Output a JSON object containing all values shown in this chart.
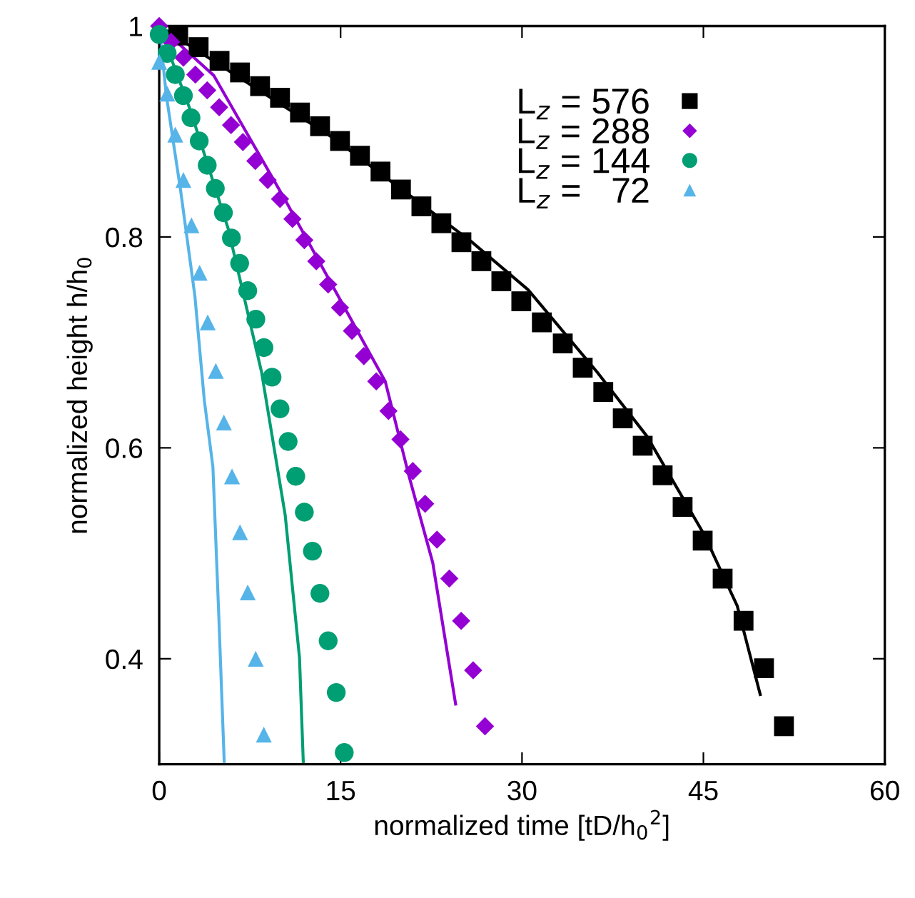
{
  "chart_data": {
    "type": "scatter",
    "xlabel": "normalized time [tD/h$_{0}$$^{2}$]",
    "ylabel": "normalized height h/h$_{0}$",
    "xlim": [
      0,
      60
    ],
    "ylim": [
      0.3,
      1
    ],
    "xticks": [
      0,
      15,
      30,
      45,
      60
    ],
    "yticks": [
      0.4,
      0.6,
      0.8,
      1
    ],
    "grid": false,
    "legend": "top right",
    "series": [
      {
        "name": "L$_{z}$ = 576",
        "marker": "square",
        "color": "#000000",
        "x": [
          1.57,
          3.26,
          4.99,
          6.68,
          8.34,
          9.99,
          11.64,
          13.3,
          14.95,
          16.6,
          18.3,
          19.99,
          21.68,
          23.33,
          24.99,
          26.64,
          28.29,
          29.94,
          31.64,
          33.37,
          35.02,
          36.72,
          38.33,
          39.98,
          41.63,
          43.28,
          44.94,
          46.59,
          48.32,
          50.01,
          51.66
        ],
        "values": [
          0.991,
          0.98,
          0.967,
          0.956,
          0.943,
          0.932,
          0.918,
          0.905,
          0.891,
          0.877,
          0.862,
          0.845,
          0.829,
          0.813,
          0.795,
          0.777,
          0.758,
          0.739,
          0.719,
          0.699,
          0.676,
          0.653,
          0.628,
          0.602,
          0.574,
          0.544,
          0.512,
          0.476,
          0.436,
          0.391,
          0.336
        ]
      },
      {
        "name": "L$_{z}$ = 288",
        "marker": "diamond",
        "color": "#9400d3",
        "x": [
          0,
          0.98,
          2.0,
          2.99,
          3.97,
          4.96,
          5.94,
          6.92,
          7.95,
          8.97,
          9.99,
          11.02,
          12.0,
          12.99,
          13.97,
          14.95,
          15.94,
          16.92,
          17.95,
          18.96,
          19.95,
          20.97,
          21.99,
          22.97,
          23.99,
          24.97,
          25.96,
          26.94
        ],
        "values": [
          1.0,
          0.985,
          0.97,
          0.954,
          0.939,
          0.923,
          0.906,
          0.89,
          0.872,
          0.854,
          0.836,
          0.817,
          0.797,
          0.777,
          0.755,
          0.733,
          0.711,
          0.687,
          0.663,
          0.635,
          0.608,
          0.578,
          0.547,
          0.513,
          0.476,
          0.436,
          0.389,
          0.336
        ]
      },
      {
        "name": "L$_{z}$ = 144",
        "marker": "circle",
        "color": "#009e73",
        "x": [
          0,
          0.66,
          1.33,
          2.0,
          2.63,
          3.31,
          3.97,
          4.64,
          5.31,
          5.97,
          6.65,
          7.32,
          7.99,
          8.66,
          9.33,
          9.99,
          10.66,
          11.29,
          12.0,
          12.67,
          13.29,
          13.97,
          14.64,
          15.3
        ],
        "values": [
          0.992,
          0.974,
          0.954,
          0.934,
          0.913,
          0.891,
          0.868,
          0.846,
          0.823,
          0.799,
          0.775,
          0.749,
          0.722,
          0.695,
          0.667,
          0.637,
          0.606,
          0.573,
          0.539,
          0.502,
          0.462,
          0.417,
          0.368,
          0.311
        ]
      },
      {
        "name": "L$_{z}$ =   72",
        "marker": "triangle",
        "color": "#56b4e9",
        "x": [
          0,
          0.66,
          1.33,
          2.0,
          2.67,
          3.34,
          4.01,
          4.68,
          5.35,
          6.02,
          6.68,
          7.32,
          7.98,
          8.65
        ],
        "values": [
          0.966,
          0.936,
          0.897,
          0.854,
          0.811,
          0.766,
          0.719,
          0.673,
          0.624,
          0.573,
          0.52,
          0.463,
          0.4,
          0.328
        ]
      },
      {
        "type": "line",
        "color": "#000000",
        "x": [
          0,
          14.36,
          25.77,
          30.5,
          36.2,
          40.33,
          45.05,
          47.8,
          49.7
        ],
        "values": [
          1,
          0.894,
          0.796,
          0.75,
          0.672,
          0.611,
          0.518,
          0.45,
          0.366
        ]
      },
      {
        "type": "line",
        "color": "#9400d3",
        "x": [
          0,
          4.52,
          10.42,
          18.69,
          20.66,
          22.62,
          24.51
        ],
        "values": [
          1,
          0.953,
          0.835,
          0.663,
          0.573,
          0.491,
          0.357
        ]
      },
      {
        "type": "line",
        "color": "#009e73",
        "x": [
          0,
          2.55,
          5.7,
          8.46,
          10.42,
          11.6,
          11.92
        ],
        "values": [
          1,
          0.921,
          0.808,
          0.672,
          0.536,
          0.401,
          0.3
        ]
      },
      {
        "type": "line",
        "color": "#56b4e9",
        "x": [
          0,
          0.59,
          1.77,
          2.95,
          3.73,
          4.44,
          4.91,
          5.38
        ],
        "values": [
          1,
          0.934,
          0.844,
          0.744,
          0.645,
          0.582,
          0.446,
          0.301
        ]
      }
    ]
  }
}
